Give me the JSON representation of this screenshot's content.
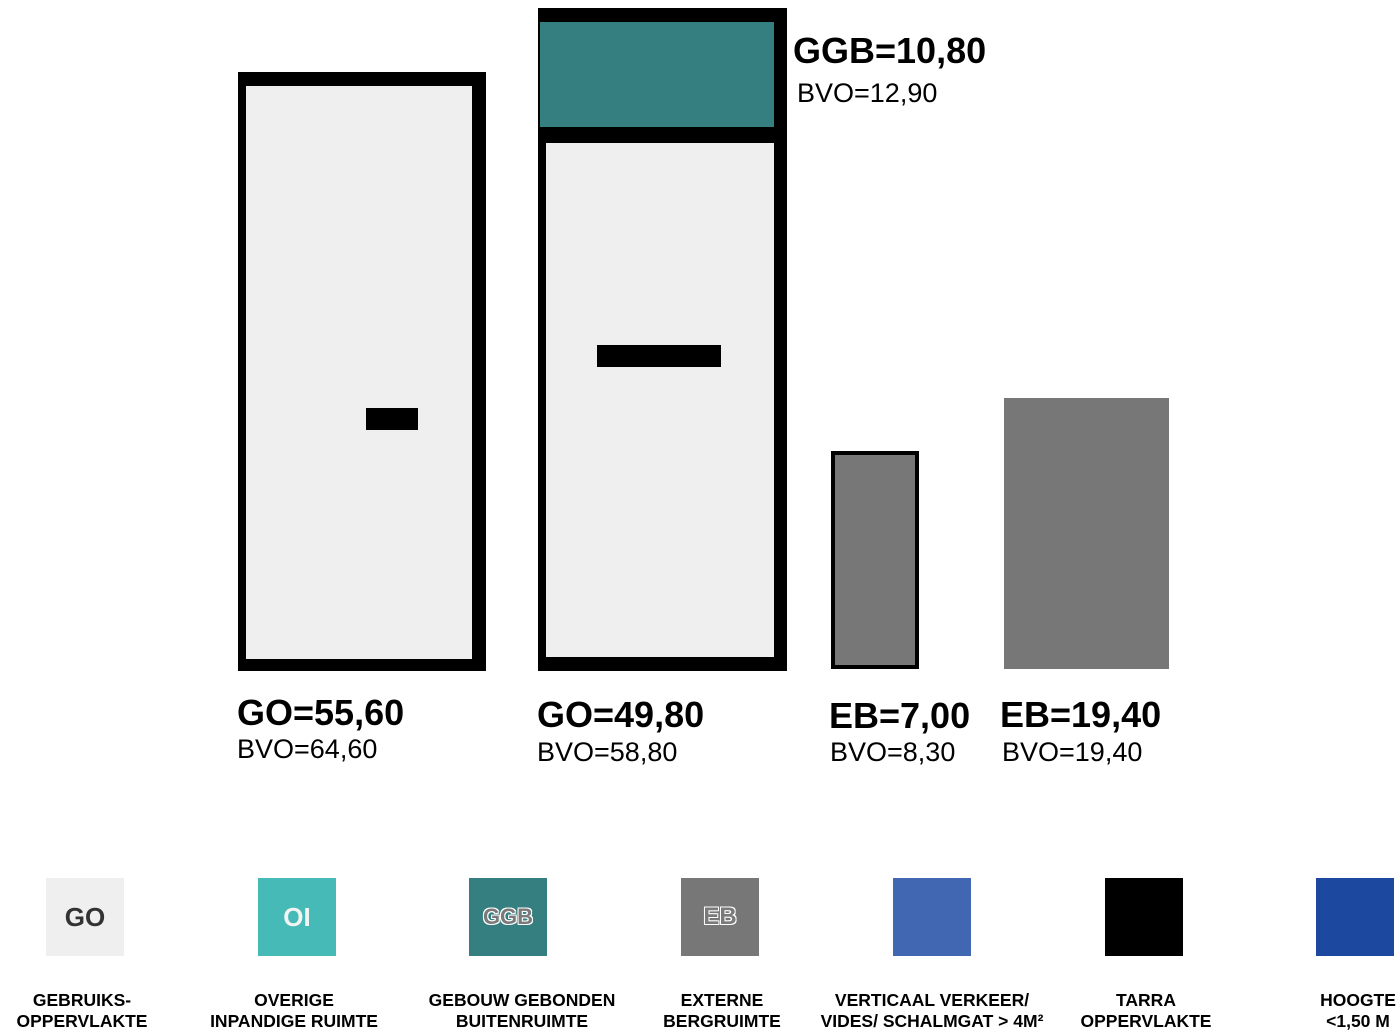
{
  "units": [
    {
      "main": "GO=55,60",
      "sub": "BVO=64,60"
    },
    {
      "main": "GO=49,80",
      "sub": "BVO=58,80",
      "top_main": "GGB=10,80",
      "top_sub": "BVO=12,90"
    },
    {
      "main": "EB=7,00",
      "sub": "BVO=8,30"
    },
    {
      "main": "EB=19,40",
      "sub": "BVO=19,40"
    }
  ],
  "legend": [
    {
      "code": "GO",
      "color": "#efefef",
      "line1": "GEBRUIKS-",
      "line2": "OPPERVLAKTE"
    },
    {
      "code": "OI",
      "color": "#45bab6",
      "line1": "OVERIGE",
      "line2": "INPANDIGE RUIMTE"
    },
    {
      "code": "GGB",
      "color": "#357f80",
      "line1": "GEBOUW GEBONDEN",
      "line2": "BUITENRUIMTE"
    },
    {
      "code": "EB",
      "color": "#777777",
      "line1": "EXTERNE",
      "line2": "BERGRUIMTE"
    },
    {
      "code": "",
      "color": "#4166b2",
      "line1": "VERTICAAL VERKEER/",
      "line2": "VIDES/ SCHALMGAT > 4M²"
    },
    {
      "code": "",
      "color": "#000000",
      "line1": "TARRA",
      "line2": "OPPERVLAKTE"
    },
    {
      "code": "",
      "color": "#1c48a0",
      "line1": "HOOGTE",
      "line2": "<1,50 M"
    }
  ]
}
